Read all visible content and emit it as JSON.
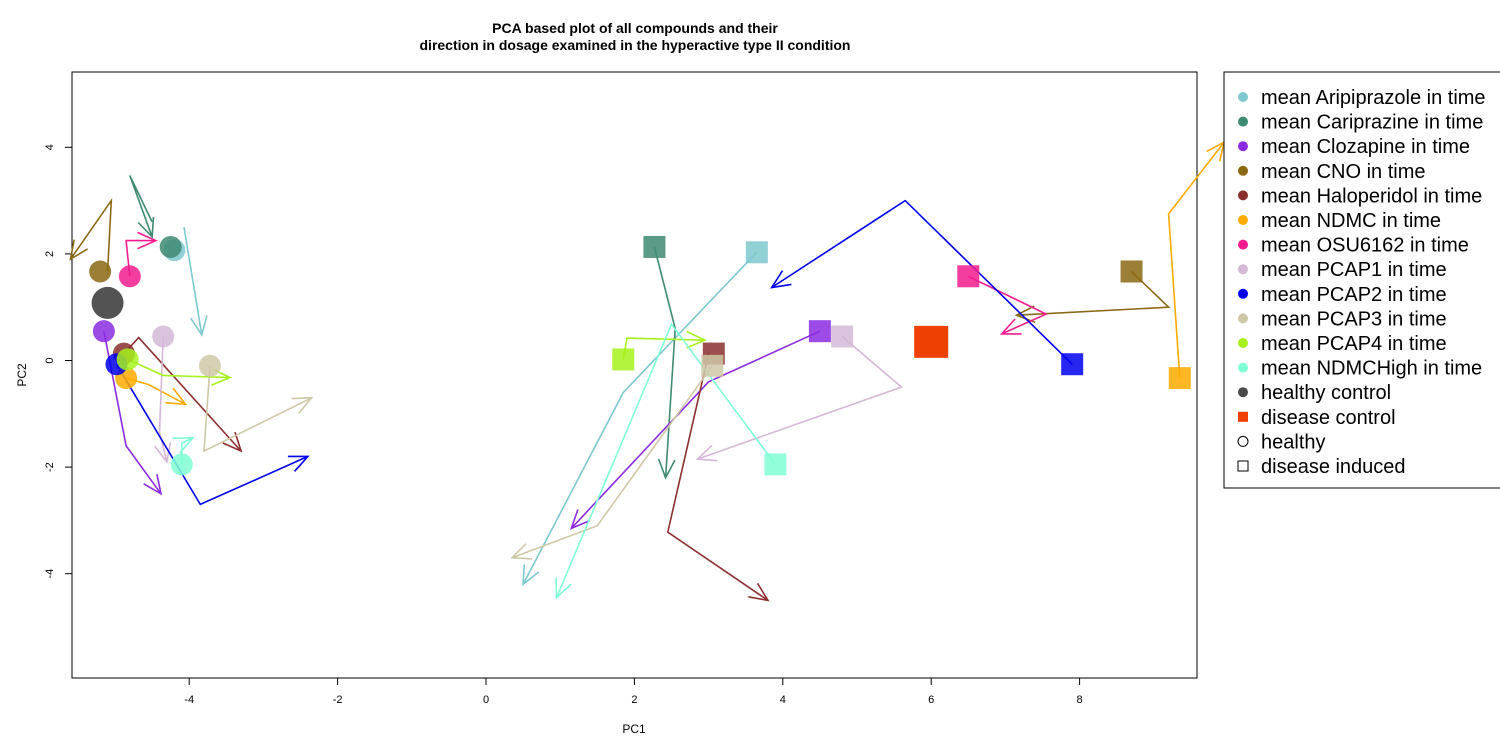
{
  "chart_data": {
    "type": "scatter",
    "title_lines": [
      "PCA based plot of all compounds and their",
      "direction in dosage examined in the hyperactive type II condition"
    ],
    "xlabel": "PC1",
    "ylabel": "PC2",
    "xlim": [
      -5.7,
      9.5
    ],
    "ylim": [
      -5.95,
      5.4
    ],
    "x_ticks": [
      -4,
      -2,
      0,
      2,
      4,
      6,
      8
    ],
    "y_ticks": [
      -4,
      -2,
      0,
      2,
      4
    ],
    "legend_position": "right",
    "series": [
      {
        "name": "mean Aripiprazole in time",
        "color": "#7EC8CE",
        "healthy_point": [
          -4.2,
          2.07
        ],
        "disease_point": [
          3.65,
          2.03
        ],
        "healthy_path": [
          [
            -4.07,
            2.5
          ],
          [
            -3.83,
            0.48
          ]
        ],
        "disease_path": [
          [
            3.65,
            2.03
          ],
          [
            1.85,
            -0.6
          ],
          [
            0.5,
            -4.2
          ]
        ]
      },
      {
        "name": "mean Cariprazine in time",
        "color": "#3F8A73",
        "healthy_point": [
          -4.25,
          2.13
        ],
        "disease_point": [
          2.27,
          2.13
        ],
        "healthy_path": [
          [
            -4.5,
            2.6
          ],
          [
            -4.8,
            3.47
          ],
          [
            -4.5,
            2.32
          ]
        ],
        "disease_path": [
          [
            2.27,
            2.13
          ],
          [
            2.55,
            0.6
          ],
          [
            2.42,
            -2.2
          ]
        ]
      },
      {
        "name": "mean Clozapine in time",
        "color": "#8B2BE2",
        "healthy_point": [
          -5.15,
          0.55
        ],
        "disease_point": [
          4.5,
          0.55
        ],
        "healthy_path": [
          [
            -5.15,
            0.55
          ],
          [
            -4.85,
            -1.6
          ],
          [
            -4.38,
            -2.5
          ]
        ],
        "disease_path": [
          [
            4.5,
            0.55
          ],
          [
            3.0,
            -0.4
          ],
          [
            1.15,
            -3.15
          ]
        ]
      },
      {
        "name": "mean CNO in time",
        "color": "#8B6914",
        "healthy_point": [
          -5.2,
          1.67
        ],
        "disease_point": [
          8.7,
          1.67
        ],
        "healthy_path": [
          [
            -5.1,
            1.67
          ],
          [
            -5.05,
            3.0
          ],
          [
            -5.6,
            1.9
          ]
        ],
        "disease_path": [
          [
            8.7,
            1.67
          ],
          [
            9.2,
            1.0
          ],
          [
            7.15,
            0.85
          ]
        ]
      },
      {
        "name": "mean Haloperidol in time",
        "color": "#8B2E2E",
        "healthy_point": [
          -4.88,
          0.13
        ],
        "disease_point": [
          3.07,
          0.13
        ],
        "healthy_path": [
          [
            -4.88,
            0.13
          ],
          [
            -4.68,
            0.43
          ],
          [
            -3.3,
            -1.7
          ]
        ],
        "disease_path": [
          [
            3.0,
            0.13
          ],
          [
            2.45,
            -3.22
          ],
          [
            3.8,
            -4.5
          ]
        ]
      },
      {
        "name": "mean NDMC in time",
        "color": "#FFAA00",
        "healthy_point": [
          -4.85,
          -0.33
        ],
        "disease_point": [
          9.35,
          -0.33
        ],
        "healthy_path": [
          [
            -4.85,
            -0.33
          ],
          [
            -4.55,
            -0.45
          ],
          [
            -4.05,
            -0.82
          ]
        ],
        "disease_path": [
          [
            9.35,
            -0.33
          ],
          [
            9.2,
            2.75
          ],
          [
            9.95,
            4.1
          ]
        ]
      },
      {
        "name": "mean OSU6162 in time",
        "color": "#F21C8E",
        "healthy_point": [
          -4.8,
          1.58
        ],
        "disease_point": [
          6.5,
          1.58
        ],
        "healthy_path": [
          [
            -4.8,
            1.58
          ],
          [
            -4.85,
            2.25
          ],
          [
            -4.45,
            2.25
          ]
        ],
        "disease_path": [
          [
            6.5,
            1.58
          ],
          [
            7.55,
            0.87
          ],
          [
            6.95,
            0.5
          ]
        ]
      },
      {
        "name": "mean PCAP1 in time",
        "color": "#D4B8D6",
        "healthy_point": [
          -4.35,
          0.45
        ],
        "disease_point": [
          4.8,
          0.45
        ],
        "healthy_path": [
          [
            -4.35,
            0.45
          ],
          [
            -4.4,
            -1.35
          ],
          [
            -4.3,
            -1.9
          ]
        ],
        "disease_path": [
          [
            4.8,
            0.45
          ],
          [
            5.6,
            -0.5
          ],
          [
            2.85,
            -1.85
          ]
        ]
      },
      {
        "name": "mean PCAP2 in time",
        "color": "#0000EE",
        "healthy_point": [
          -4.98,
          -0.07
        ],
        "disease_point": [
          7.9,
          -0.07
        ],
        "healthy_path": [
          [
            -4.98,
            -0.07
          ],
          [
            -3.85,
            -2.7
          ],
          [
            -2.4,
            -1.8
          ]
        ],
        "disease_path": [
          [
            7.9,
            -0.07
          ],
          [
            5.65,
            3.0
          ],
          [
            3.85,
            1.37
          ]
        ]
      },
      {
        "name": "mean PCAP3 in time",
        "color": "#CFC8A8",
        "healthy_point": [
          -3.72,
          -0.1
        ],
        "disease_point": [
          3.05,
          -0.1
        ],
        "healthy_path": [
          [
            -3.72,
            -0.1
          ],
          [
            -3.8,
            -1.7
          ],
          [
            -2.35,
            -0.7
          ]
        ],
        "disease_path": [
          [
            3.05,
            -0.1
          ],
          [
            1.5,
            -3.1
          ],
          [
            0.35,
            -3.7
          ]
        ]
      },
      {
        "name": "mean PCAP4 in time",
        "color": "#A6F21C",
        "healthy_point": [
          -4.83,
          0.02
        ],
        "disease_point": [
          1.85,
          0.02
        ],
        "healthy_path": [
          [
            -4.83,
            0.02
          ],
          [
            -4.35,
            -0.28
          ],
          [
            -3.45,
            -0.32
          ]
        ],
        "disease_path": [
          [
            1.85,
            0.02
          ],
          [
            1.9,
            0.42
          ],
          [
            2.95,
            0.38
          ]
        ]
      },
      {
        "name": "mean NDMCHigh in time",
        "color": "#7FFFD4",
        "healthy_point": [
          -4.1,
          -1.95
        ],
        "disease_point": [
          3.9,
          -1.95
        ],
        "healthy_path": [
          [
            -4.1,
            -1.95
          ],
          [
            -4.1,
            -1.55
          ],
          [
            -3.95,
            -1.45
          ]
        ],
        "disease_path": [
          [
            3.9,
            -1.95
          ],
          [
            2.5,
            0.68
          ],
          [
            0.95,
            -4.45
          ]
        ]
      }
    ],
    "controls": [
      {
        "name": "healthy control",
        "color": "#4A4A4A",
        "marker": "circle",
        "point": [
          -5.1,
          1.08
        ]
      },
      {
        "name": "disease control",
        "color": "#EE4000",
        "marker": "square",
        "point": [
          6.0,
          0.35
        ]
      }
    ],
    "shape_legend": [
      {
        "name": "healthy",
        "marker": "open-circle"
      },
      {
        "name": "disease induced",
        "marker": "open-square"
      }
    ]
  }
}
